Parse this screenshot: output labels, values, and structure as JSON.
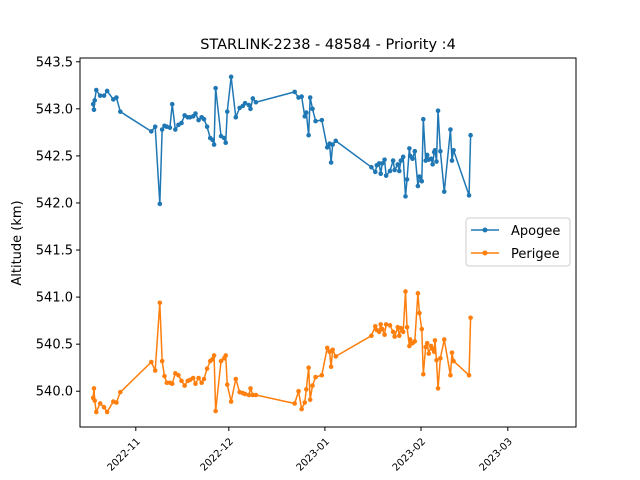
{
  "chart_data": {
    "type": "line",
    "title": "STARLINK-2238 - 48584 - Priority :4",
    "xlabel": "",
    "ylabel": "Altitude (km)",
    "ylim": [
      539.62,
      543.54
    ],
    "xlim": [
      "2022-10-14",
      "2023-03-23"
    ],
    "yticks": [
      "540.0",
      "540.5",
      "541.0",
      "541.5",
      "542.0",
      "542.5",
      "543.0",
      "543.5"
    ],
    "xticks": [
      "2022-11",
      "2022-12",
      "2023-01",
      "2023-02",
      "2023-03"
    ],
    "grid": false,
    "legend": "center-right",
    "colors": {
      "apogee": "#1f77b4",
      "perigee": "#ff7f0e"
    },
    "series": [
      {
        "name": "Apogee",
        "color": "#1f77b4",
        "points": [
          [
            "2022-10-18T06:00",
            543.05
          ],
          [
            "2022-10-18T12:00",
            542.99
          ],
          [
            "2022-10-18T18:00",
            543.09
          ],
          [
            "2022-10-19T06:00",
            543.2
          ],
          [
            "2022-10-20T12:00",
            543.14
          ],
          [
            "2022-10-21T18:00",
            543.14
          ],
          [
            "2022-10-22T18:00",
            543.19
          ],
          [
            "2022-10-24T18:00",
            543.1
          ],
          [
            "2022-10-25T18:00",
            543.12
          ],
          [
            "2022-10-27T00:00",
            542.97
          ],
          [
            "2022-11-06T00:00",
            542.76
          ],
          [
            "2022-11-07T06:00",
            542.81
          ],
          [
            "2022-11-08T18:00",
            541.99
          ],
          [
            "2022-11-09T12:00",
            542.78
          ],
          [
            "2022-11-10T06:00",
            542.82
          ],
          [
            "2022-11-11T00:00",
            542.81
          ],
          [
            "2022-11-12T00:00",
            542.8
          ],
          [
            "2022-11-12T18:00",
            543.05
          ],
          [
            "2022-11-13T18:00",
            542.78
          ],
          [
            "2022-11-14T18:00",
            542.83
          ],
          [
            "2022-11-15T18:00",
            542.85
          ],
          [
            "2022-11-16T18:00",
            542.93
          ],
          [
            "2022-11-17T18:00",
            542.91
          ],
          [
            "2022-11-18T12:00",
            542.91
          ],
          [
            "2022-11-19T12:00",
            542.92
          ],
          [
            "2022-11-20T06:00",
            542.95
          ],
          [
            "2022-11-21T06:00",
            542.88
          ],
          [
            "2022-11-22T06:00",
            542.91
          ],
          [
            "2022-11-23T00:00",
            542.89
          ],
          [
            "2022-11-24T00:00",
            542.81
          ],
          [
            "2022-11-25T00:00",
            542.69
          ],
          [
            "2022-11-25T18:00",
            542.67
          ],
          [
            "2022-11-26T06:00",
            542.62
          ],
          [
            "2022-11-26T18:00",
            543.22
          ],
          [
            "2022-11-28T12:00",
            542.71
          ],
          [
            "2022-11-29T12:00",
            542.69
          ],
          [
            "2022-11-30T00:00",
            542.64
          ],
          [
            "2022-11-30T12:00",
            542.97
          ],
          [
            "2022-12-01T18:00",
            543.34
          ],
          [
            "2022-12-03T06:00",
            542.91
          ],
          [
            "2022-12-04T12:00",
            543.01
          ],
          [
            "2022-12-05T12:00",
            543.03
          ],
          [
            "2022-12-06T06:00",
            543.06
          ],
          [
            "2022-12-07T12:00",
            543.04
          ],
          [
            "2022-12-08T00:00",
            543.0
          ],
          [
            "2022-12-08T18:00",
            543.11
          ],
          [
            "2022-12-09T18:00",
            543.07
          ],
          [
            "2022-12-22T06:00",
            543.18
          ],
          [
            "2022-12-23T12:00",
            543.12
          ],
          [
            "2022-12-24T12:00",
            543.13
          ],
          [
            "2022-12-25T12:00",
            542.92
          ],
          [
            "2022-12-26T00:00",
            542.96
          ],
          [
            "2022-12-26T18:00",
            542.72
          ],
          [
            "2022-12-27T06:00",
            543.12
          ],
          [
            "2022-12-28T00:00",
            543.0
          ],
          [
            "2022-12-29T00:00",
            542.87
          ],
          [
            "2022-12-31T00:00",
            542.88
          ],
          [
            "2023-01-01T18:00",
            542.59
          ],
          [
            "2023-01-02T12:00",
            542.63
          ],
          [
            "2023-01-03T00:00",
            542.43
          ],
          [
            "2023-01-03T12:00",
            542.62
          ],
          [
            "2023-01-04T12:00",
            542.66
          ],
          [
            "2023-01-16T00:00",
            542.38
          ],
          [
            "2023-01-17T06:00",
            542.33
          ],
          [
            "2023-01-17T18:00",
            542.4
          ],
          [
            "2023-01-18T12:00",
            542.42
          ],
          [
            "2023-01-19T00:00",
            542.31
          ],
          [
            "2023-01-19T12:00",
            542.42
          ],
          [
            "2023-01-20T06:00",
            542.46
          ],
          [
            "2023-01-20T18:00",
            542.29
          ],
          [
            "2023-01-22T00:00",
            542.34
          ],
          [
            "2023-01-23T00:00",
            542.45
          ],
          [
            "2023-01-23T12:00",
            542.35
          ],
          [
            "2023-01-24T12:00",
            542.41
          ],
          [
            "2023-01-25T00:00",
            542.34
          ],
          [
            "2023-01-25T12:00",
            542.45
          ],
          [
            "2023-01-26T06:00",
            542.49
          ],
          [
            "2023-01-27T00:00",
            542.07
          ],
          [
            "2023-01-27T12:00",
            542.25
          ],
          [
            "2023-01-28T06:00",
            542.58
          ],
          [
            "2023-01-28T12:00",
            542.5
          ],
          [
            "2023-01-29T06:00",
            542.47
          ],
          [
            "2023-01-30T00:00",
            542.55
          ],
          [
            "2023-01-31T00:00",
            542.18
          ],
          [
            "2023-01-31T12:00",
            542.28
          ],
          [
            "2023-02-01T06:00",
            542.23
          ],
          [
            "2023-02-01T18:00",
            542.89
          ],
          [
            "2023-02-02T12:00",
            542.45
          ],
          [
            "2023-02-03T00:00",
            542.51
          ],
          [
            "2023-02-03T12:00",
            542.46
          ],
          [
            "2023-02-04T06:00",
            542.47
          ],
          [
            "2023-02-04T18:00",
            542.41
          ],
          [
            "2023-02-05T06:00",
            542.54
          ],
          [
            "2023-02-05T12:00",
            542.56
          ],
          [
            "2023-02-06T00:00",
            542.44
          ],
          [
            "2023-02-06T12:00",
            542.98
          ],
          [
            "2023-02-07T06:00",
            542.55
          ],
          [
            "2023-02-08T12:00",
            542.12
          ],
          [
            "2023-02-10T12:00",
            542.78
          ],
          [
            "2023-02-11T00:00",
            542.45
          ],
          [
            "2023-02-11T12:00",
            542.56
          ],
          [
            "2023-02-16T12:00",
            542.08
          ],
          [
            "2023-02-17T00:00",
            542.72
          ]
        ]
      },
      {
        "name": "Perigee",
        "color": "#ff7f0e",
        "points": [
          [
            "2022-10-18T06:00",
            539.93
          ],
          [
            "2022-10-18T12:00",
            540.03
          ],
          [
            "2022-10-18T18:00",
            539.9
          ],
          [
            "2022-10-19T06:00",
            539.78
          ],
          [
            "2022-10-20T12:00",
            539.87
          ],
          [
            "2022-10-21T18:00",
            539.83
          ],
          [
            "2022-10-22T18:00",
            539.78
          ],
          [
            "2022-10-24T18:00",
            539.89
          ],
          [
            "2022-10-25T18:00",
            539.88
          ],
          [
            "2022-10-27T00:00",
            539.99
          ],
          [
            "2022-11-06T00:00",
            540.31
          ],
          [
            "2022-11-07T06:00",
            540.22
          ],
          [
            "2022-11-08T18:00",
            540.94
          ],
          [
            "2022-11-09T12:00",
            540.32
          ],
          [
            "2022-11-10T06:00",
            540.16
          ],
          [
            "2022-11-11T00:00",
            540.09
          ],
          [
            "2022-11-12T00:00",
            540.09
          ],
          [
            "2022-11-12T18:00",
            540.08
          ],
          [
            "2022-11-13T18:00",
            540.19
          ],
          [
            "2022-11-14T18:00",
            540.17
          ],
          [
            "2022-11-15T18:00",
            540.11
          ],
          [
            "2022-11-16T18:00",
            540.06
          ],
          [
            "2022-11-17T18:00",
            540.11
          ],
          [
            "2022-11-18T12:00",
            540.12
          ],
          [
            "2022-11-19T12:00",
            540.14
          ],
          [
            "2022-11-20T06:00",
            540.08
          ],
          [
            "2022-11-21T06:00",
            540.14
          ],
          [
            "2022-11-22T06:00",
            540.09
          ],
          [
            "2022-11-23T00:00",
            540.13
          ],
          [
            "2022-11-24T00:00",
            540.24
          ],
          [
            "2022-11-25T00:00",
            540.32
          ],
          [
            "2022-11-25T18:00",
            540.34
          ],
          [
            "2022-11-26T06:00",
            540.38
          ],
          [
            "2022-11-26T18:00",
            539.79
          ],
          [
            "2022-11-28T12:00",
            540.32
          ],
          [
            "2022-11-29T12:00",
            540.35
          ],
          [
            "2022-11-30T00:00",
            540.38
          ],
          [
            "2022-11-30T12:00",
            540.07
          ],
          [
            "2022-12-01T18:00",
            539.89
          ],
          [
            "2022-12-03T06:00",
            540.13
          ],
          [
            "2022-12-04T12:00",
            539.99
          ],
          [
            "2022-12-05T12:00",
            539.98
          ],
          [
            "2022-12-06T06:00",
            539.97
          ],
          [
            "2022-12-07T12:00",
            539.96
          ],
          [
            "2022-12-08T00:00",
            540.03
          ],
          [
            "2022-12-08T18:00",
            539.96
          ],
          [
            "2022-12-09T18:00",
            539.96
          ],
          [
            "2022-12-22T06:00",
            539.87
          ],
          [
            "2022-12-23T12:00",
            540.0
          ],
          [
            "2022-12-24T12:00",
            539.81
          ],
          [
            "2022-12-25T12:00",
            539.88
          ],
          [
            "2022-12-26T00:00",
            540.02
          ],
          [
            "2022-12-26T18:00",
            540.25
          ],
          [
            "2022-12-27T06:00",
            539.91
          ],
          [
            "2022-12-28T00:00",
            540.06
          ],
          [
            "2022-12-29T00:00",
            540.15
          ],
          [
            "2022-12-31T00:00",
            540.17
          ],
          [
            "2023-01-01T18:00",
            540.46
          ],
          [
            "2023-01-02T12:00",
            540.42
          ],
          [
            "2023-01-03T00:00",
            540.26
          ],
          [
            "2023-01-03T12:00",
            540.44
          ],
          [
            "2023-01-04T12:00",
            540.37
          ],
          [
            "2023-01-16T00:00",
            540.59
          ],
          [
            "2023-01-17T06:00",
            540.69
          ],
          [
            "2023-01-17T18:00",
            540.65
          ],
          [
            "2023-01-18T12:00",
            540.63
          ],
          [
            "2023-01-19T00:00",
            540.71
          ],
          [
            "2023-01-19T12:00",
            540.66
          ],
          [
            "2023-01-20T06:00",
            540.6
          ],
          [
            "2023-01-20T18:00",
            540.71
          ],
          [
            "2023-01-22T00:00",
            540.7
          ],
          [
            "2023-01-23T00:00",
            540.63
          ],
          [
            "2023-01-23T12:00",
            540.58
          ],
          [
            "2023-01-24T12:00",
            540.68
          ],
          [
            "2023-01-25T00:00",
            540.59
          ],
          [
            "2023-01-25T12:00",
            540.67
          ],
          [
            "2023-01-26T06:00",
            540.63
          ],
          [
            "2023-01-27T00:00",
            541.06
          ],
          [
            "2023-01-27T12:00",
            540.68
          ],
          [
            "2023-01-28T06:00",
            540.48
          ],
          [
            "2023-01-28T12:00",
            540.55
          ],
          [
            "2023-01-29T06:00",
            540.51
          ],
          [
            "2023-01-30T00:00",
            540.53
          ],
          [
            "2023-01-31T00:00",
            541.04
          ],
          [
            "2023-01-31T12:00",
            540.83
          ],
          [
            "2023-02-01T06:00",
            540.66
          ],
          [
            "2023-02-01T18:00",
            540.18
          ],
          [
            "2023-02-02T12:00",
            540.47
          ],
          [
            "2023-02-03T00:00",
            540.51
          ],
          [
            "2023-02-03T12:00",
            540.4
          ],
          [
            "2023-02-04T06:00",
            540.48
          ],
          [
            "2023-02-04T18:00",
            540.45
          ],
          [
            "2023-02-05T06:00",
            540.42
          ],
          [
            "2023-02-05T12:00",
            540.54
          ],
          [
            "2023-02-06T00:00",
            540.33
          ],
          [
            "2023-02-06T12:00",
            540.03
          ],
          [
            "2023-02-07T06:00",
            540.35
          ],
          [
            "2023-02-08T12:00",
            540.55
          ],
          [
            "2023-02-10T12:00",
            540.17
          ],
          [
            "2023-02-11T00:00",
            540.41
          ],
          [
            "2023-02-11T12:00",
            540.32
          ],
          [
            "2023-02-16T12:00",
            540.17
          ],
          [
            "2023-02-17T00:00",
            540.78
          ]
        ]
      }
    ]
  }
}
